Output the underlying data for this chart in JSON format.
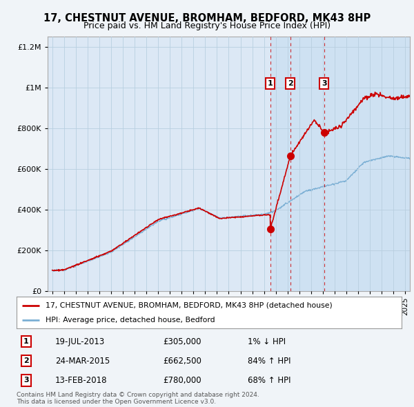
{
  "title": "17, CHESTNUT AVENUE, BROMHAM, BEDFORD, MK43 8HP",
  "subtitle": "Price paid vs. HM Land Registry's House Price Index (HPI)",
  "property_label": "17, CHESTNUT AVENUE, BROMHAM, BEDFORD, MK43 8HP (detached house)",
  "hpi_label": "HPI: Average price, detached house, Bedford",
  "property_color": "#cc0000",
  "hpi_color": "#7bafd4",
  "background_color": "#f0f4f8",
  "plot_bg_color": "#dce8f5",
  "grid_color": "#b8cfe0",
  "shade_color": "#c5ddf0",
  "sales": [
    {
      "num": 1,
      "date_label": "19-JUL-2013",
      "price": 305000,
      "change": "1% ↓ HPI",
      "x_year": 2013.54
    },
    {
      "num": 2,
      "date_label": "24-MAR-2015",
      "price": 662500,
      "change": "84% ↑ HPI",
      "x_year": 2015.23
    },
    {
      "num": 3,
      "date_label": "13-FEB-2018",
      "price": 780000,
      "change": "68% ↑ HPI",
      "x_year": 2018.12
    }
  ],
  "footer": "Contains HM Land Registry data © Crown copyright and database right 2024.\nThis data is licensed under the Open Government Licence v3.0.",
  "ylim": [
    0,
    1250000
  ],
  "xlim_start": 1994.6,
  "xlim_end": 2025.4
}
